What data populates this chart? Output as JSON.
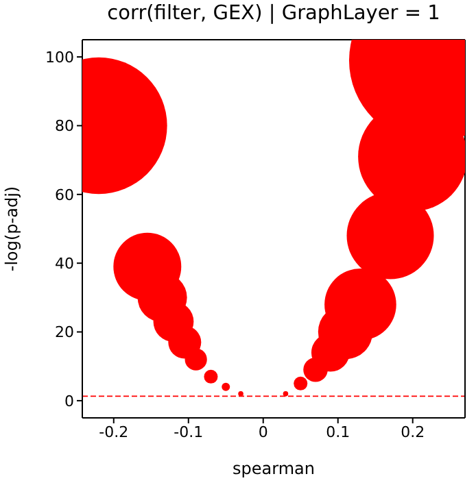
{
  "chart_data": {
    "type": "bubble",
    "title": "corr(filter, GEX) | GraphLayer = 1",
    "xlabel": "spearman",
    "ylabel": "-log(p-adj)",
    "x": [
      -0.22,
      -0.155,
      -0.135,
      -0.12,
      -0.105,
      -0.09,
      -0.07,
      -0.05,
      -0.03,
      0.03,
      0.05,
      0.07,
      0.09,
      0.11,
      0.13,
      0.17,
      0.2,
      0.225
    ],
    "values": [
      80,
      39,
      30,
      23,
      17,
      12,
      7,
      4,
      2,
      2,
      5,
      9,
      14,
      20,
      28,
      48,
      71,
      99
    ],
    "sizes": [
      0.69,
      0.17,
      0.09,
      0.06,
      0.04,
      0.018,
      0.007,
      0.0025,
      0.001,
      0.001,
      0.007,
      0.022,
      0.054,
      0.11,
      0.19,
      0.28,
      0.44,
      1
    ],
    "color": "#ff0000",
    "xlim": [
      -0.242,
      0.27
    ],
    "xticks": [
      -0.2,
      -0.1,
      0,
      0.1,
      0.2
    ],
    "ylim": [
      -5,
      105
    ],
    "yticks": [
      0,
      20,
      40,
      60,
      80,
      100
    ],
    "ref_lines": [
      {
        "axis": "y",
        "value": 1.3,
        "color": "#ff0000",
        "line_style": "dashed"
      }
    ],
    "grid": false,
    "legend": false
  }
}
